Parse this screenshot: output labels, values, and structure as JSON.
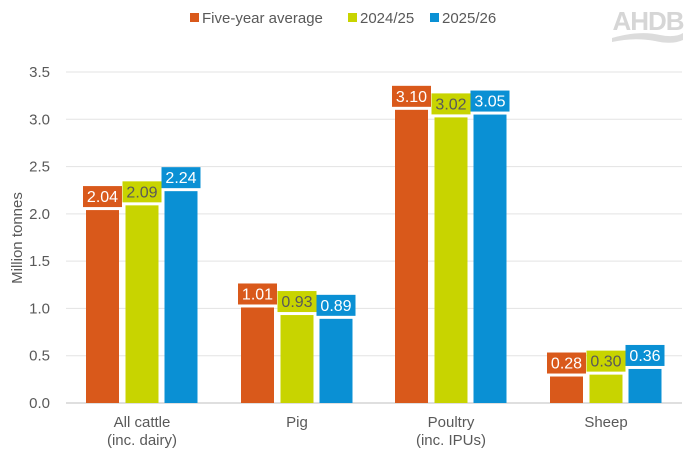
{
  "logo_text": "AHDB",
  "chart_data": {
    "type": "bar",
    "title": "",
    "xlabel": "",
    "ylabel": "Million tonnes",
    "ylim": [
      0,
      3.5
    ],
    "yticks": [
      "0.0",
      "0.5",
      "1.0",
      "1.5",
      "2.0",
      "2.5",
      "3.0",
      "3.5"
    ],
    "grid": true,
    "legend_position": "top",
    "categories": [
      [
        "All cattle",
        "(inc. dairy)"
      ],
      [
        "Pig"
      ],
      [
        "Poultry",
        "(inc. IPUs)"
      ],
      [
        "Sheep"
      ]
    ],
    "series": [
      {
        "name": "Five-year average",
        "color": "#d9591b",
        "label_text_color": "#ffffff",
        "values": [
          2.04,
          1.01,
          3.1,
          0.28
        ],
        "labels": [
          "2.04",
          "1.01",
          "3.10",
          "0.28"
        ]
      },
      {
        "name": "2024/25",
        "color": "#c8d400",
        "label_text_color": "#595959",
        "values": [
          2.09,
          0.93,
          3.02,
          0.3
        ],
        "labels": [
          "2.09",
          "0.93",
          "3.02",
          "0.30"
        ]
      },
      {
        "name": "2025/26",
        "color": "#0a90d4",
        "label_text_color": "#ffffff",
        "values": [
          2.24,
          0.89,
          3.05,
          0.36
        ],
        "labels": [
          "2.24",
          "0.89",
          "3.05",
          "0.36"
        ]
      }
    ]
  }
}
